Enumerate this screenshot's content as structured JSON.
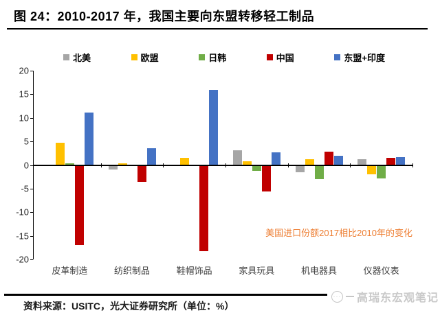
{
  "header": {
    "title": "图 24：2010-2017 年，我国主要向东盟转移轻工制品"
  },
  "chart_data": {
    "type": "bar",
    "title": "图 24：2010-2017 年，我国主要向东盟转移轻工制品",
    "categories": [
      "皮革制造",
      "纺织制品",
      "鞋帽饰品",
      "家具玩具",
      "机电器具",
      "仪器仪表"
    ],
    "series": [
      {
        "name": "北美",
        "color": "#A6A6A6",
        "values": [
          0,
          -1.0,
          0,
          3.1,
          -1.5,
          1.2
        ]
      },
      {
        "name": "欧盟",
        "color": "#FFC000",
        "values": [
          4.8,
          0.4,
          1.5,
          0.8,
          1.3,
          -2.0
        ]
      },
      {
        "name": "日韩",
        "color": "#70AD47",
        "values": [
          0.4,
          0,
          0,
          -1.3,
          -3.0,
          -2.9
        ]
      },
      {
        "name": "中国",
        "color": "#C00000",
        "values": [
          -16.9,
          -3.6,
          -18.3,
          -5.6,
          2.9,
          1.6
        ]
      },
      {
        "name": "东盟+印度",
        "color": "#4472C4",
        "values": [
          11.2,
          3.5,
          16.0,
          2.7,
          2.0,
          1.7
        ]
      }
    ],
    "ylim": [
      -20,
      20
    ],
    "ytick_step": 5,
    "unit": "%",
    "grid": false,
    "legend_position": "top",
    "annotation": "美国进口份额2017相比2010年的变化"
  },
  "footer": {
    "source": "资料来源：USITC，光大证券研究所（单位：%）"
  },
  "watermark": {
    "icon": "dots-face-logo",
    "text": "高瑞东宏观笔记"
  },
  "colors": {
    "annotation": "#ED7D31",
    "axis": "#000000",
    "watermark": "#c9c9c9"
  }
}
